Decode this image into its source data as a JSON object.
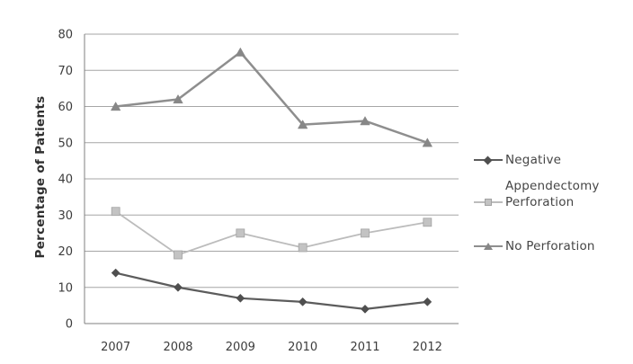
{
  "chart_data": {
    "type": "line",
    "title": "",
    "xlabel": "",
    "ylabel": "Percentage of Patients",
    "categories": [
      "2007",
      "2008",
      "2009",
      "2010",
      "2011",
      "2012"
    ],
    "series": [
      {
        "name": "Negative Appendectomy",
        "values": [
          14,
          10,
          7,
          6,
          4,
          6
        ],
        "color": "#5c5c5c",
        "marker": "diamond",
        "marker_fill": "#4f4f4f",
        "marker_edge": "#4f4f4f",
        "line_width": 2.2
      },
      {
        "name": "Perforation",
        "values": [
          31,
          19,
          25,
          21,
          25,
          28
        ],
        "color": "#bcbcbc",
        "marker": "square",
        "marker_fill": "#c3c3c3",
        "marker_edge": "#a2a2a2",
        "line_width": 1.8
      },
      {
        "name": "No Perforation",
        "values": [
          60,
          62,
          75,
          55,
          56,
          50
        ],
        "color": "#8e8e8e",
        "marker": "triangle",
        "marker_fill": "#878787",
        "marker_edge": "#878787",
        "line_width": 2.5
      }
    ],
    "ylim": [
      0,
      80
    ],
    "ytick_step": 10,
    "yticks": [
      "0",
      "10",
      "20",
      "30",
      "40",
      "50",
      "60",
      "70",
      "80"
    ],
    "grid": true,
    "legend_position": "right",
    "colors": {
      "gridline": "#a6a6a6",
      "axis_line": "#7f7f7f",
      "tick_text": "#3c3c3c",
      "background": "#ffffff"
    }
  },
  "legend": {
    "items": [
      {
        "name": "Negative Appendectomy",
        "line1": "Negative",
        "line2": "Appendectomy",
        "marker": "diamond"
      },
      {
        "name": "Perforation",
        "line1": "Perforation",
        "marker": "square"
      },
      {
        "name": "No Perforation",
        "line1": "No Perforation",
        "marker": "triangle"
      }
    ]
  }
}
